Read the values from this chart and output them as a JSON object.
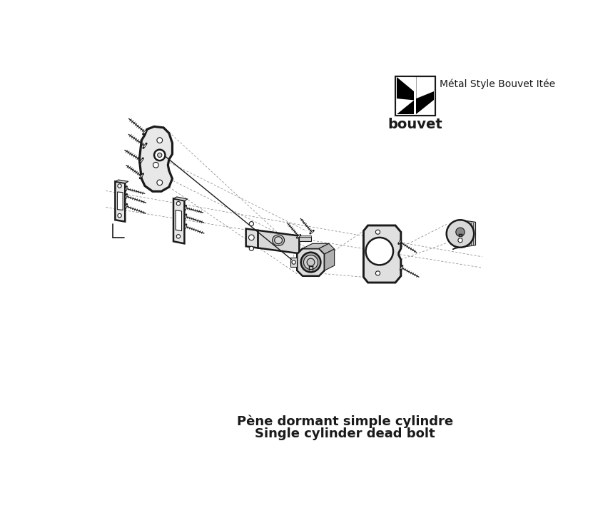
{
  "title_line1": "Pène dormant simple cylindre",
  "title_line2": "Single cylinder dead bolt",
  "brand_name": "bouvet",
  "brand_tagline": "Métal Style Bouvet Itée",
  "title_fontsize": 13,
  "brand_fontsize": 14,
  "tagline_fontsize": 10,
  "bg_color": "#ffffff",
  "line_color": "#1a1a1a",
  "fig_width": 8.31,
  "fig_height": 7.4
}
